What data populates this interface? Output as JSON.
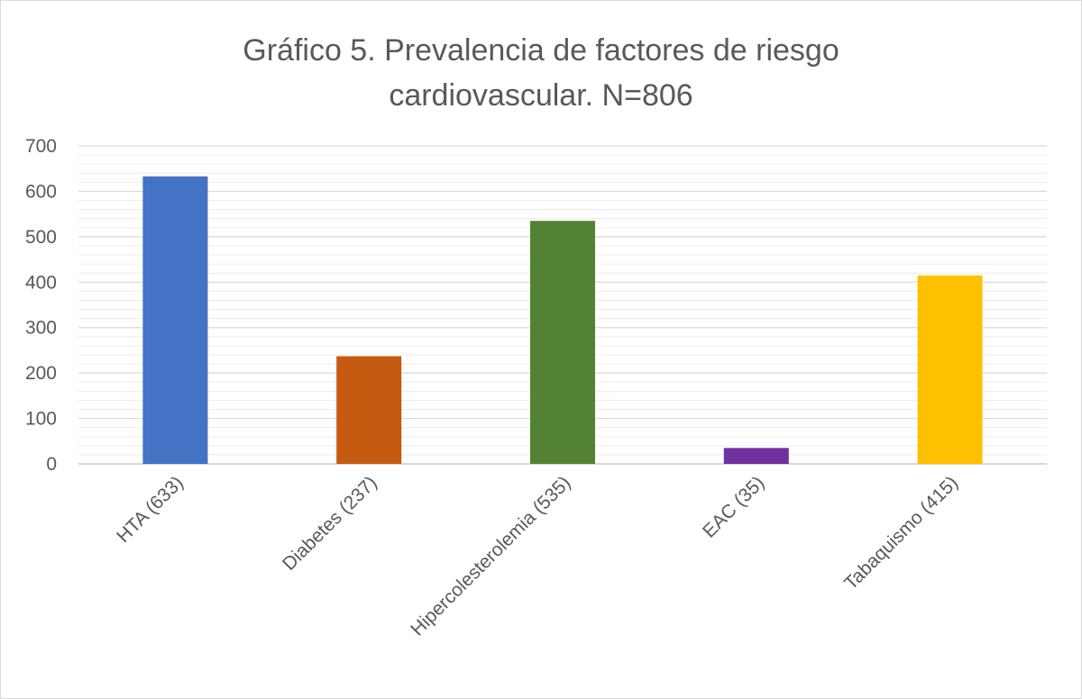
{
  "chart_data": {
    "type": "bar",
    "title_lines": [
      "Gráfico 5. Prevalencia de factores de riesgo",
      "cardiovascular. N=806"
    ],
    "categories": [
      "HTA (633)",
      "Diabetes (237)",
      "Hipercolesterolemia (535)",
      "EAC (35)",
      "Tabaquismo (415)"
    ],
    "values": [
      633,
      237,
      535,
      35,
      415
    ],
    "colors": [
      "#4472C4",
      "#C55A11",
      "#548235",
      "#7030A0",
      "#FFC000"
    ],
    "ylim": [
      0,
      700
    ],
    "yticks": [
      0,
      100,
      200,
      300,
      400,
      500,
      600,
      700
    ],
    "grid": "major and minor horizontal",
    "legend": "none"
  }
}
